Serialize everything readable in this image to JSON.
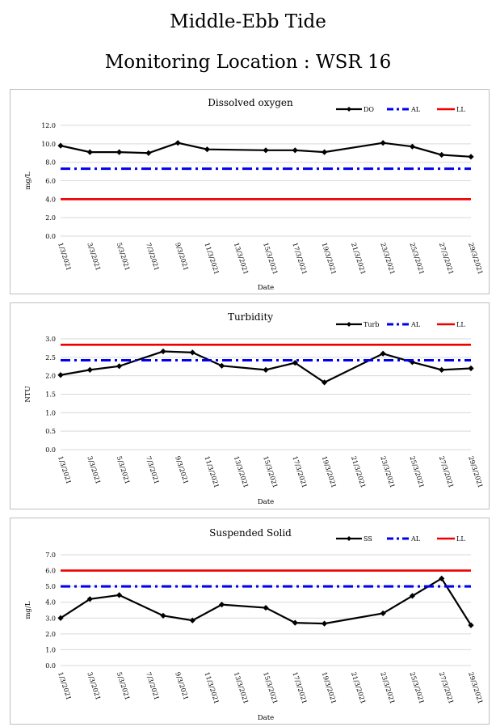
{
  "page": {
    "title_line1": "Middle-Ebb Tide",
    "title_line2": "Monitoring Location : WSR 16"
  },
  "colors": {
    "series": "#000000",
    "al": "#0000ee",
    "ll": "#ee0000",
    "grid": "#d9d9d9"
  },
  "chart_data": [
    {
      "type": "line",
      "title": "Dissolved oxygen",
      "xlabel": "Date",
      "ylabel": "mg/L",
      "ylim": [
        0,
        12
      ],
      "yticks": [
        "0.0",
        "2.0",
        "4.0",
        "6.0",
        "8.0",
        "10.0",
        "12.0"
      ],
      "categories": [
        "1/3/2021",
        "3/3/2021",
        "5/3/2021",
        "7/3/2021",
        "9/3/2021",
        "11/3/2021",
        "13/3/2021",
        "15/3/2021",
        "17/3/2021",
        "19/3/2021",
        "21/3/2021",
        "23/3/2021",
        "25/3/2021",
        "27/3/2021",
        "29/3/2021"
      ],
      "grid": true,
      "legend_position": "top-right",
      "series": [
        {
          "name": "DO",
          "style": "solid-marker",
          "points": [
            [
              "1/3/2021",
              9.8
            ],
            [
              "3/3/2021",
              9.1
            ],
            [
              "5/3/2021",
              9.1
            ],
            [
              "7/3/2021",
              9.0
            ],
            [
              "9/3/2021",
              10.1
            ],
            [
              "11/3/2021",
              9.4
            ],
            [
              "15/3/2021",
              9.3
            ],
            [
              "17/3/2021",
              9.3
            ],
            [
              "19/3/2021",
              9.1
            ],
            [
              "23/3/2021",
              10.1
            ],
            [
              "25/3/2021",
              9.7
            ],
            [
              "27/3/2021",
              8.8
            ],
            [
              "29/3/2021",
              8.6
            ]
          ]
        },
        {
          "name": "AL",
          "style": "dash-dot",
          "points": [
            [
              "1/3/2021",
              7.3
            ],
            [
              "29/3/2021",
              7.3
            ]
          ]
        },
        {
          "name": "LL",
          "style": "solid",
          "points": [
            [
              "1/3/2021",
              4.0
            ],
            [
              "29/3/2021",
              4.0
            ]
          ]
        }
      ]
    },
    {
      "type": "line",
      "title": "Turbidity",
      "xlabel": "Date",
      "ylabel": "NTU",
      "ylim": [
        0,
        3
      ],
      "yticks": [
        "0.0",
        "0.5",
        "1.0",
        "1.5",
        "2.0",
        "2.5",
        "3.0"
      ],
      "categories": [
        "1/3/2021",
        "3/3/2021",
        "5/3/2021",
        "7/3/2021",
        "9/3/2021",
        "11/3/2021",
        "13/3/2021",
        "15/3/2021",
        "17/3/2021",
        "19/3/2021",
        "21/3/2021",
        "23/3/2021",
        "25/3/2021",
        "27/3/2021",
        "29/3/2021"
      ],
      "grid": true,
      "legend_position": "top-right",
      "series": [
        {
          "name": "Turb",
          "style": "solid-marker",
          "points": [
            [
              "1/3/2021",
              2.02
            ],
            [
              "3/3/2021",
              2.16
            ],
            [
              "5/3/2021",
              2.26
            ],
            [
              "8/3/2021",
              2.66
            ],
            [
              "10/3/2021",
              2.63
            ],
            [
              "12/3/2021",
              2.27
            ],
            [
              "15/3/2021",
              2.16
            ],
            [
              "17/3/2021",
              2.35
            ],
            [
              "19/3/2021",
              1.82
            ],
            [
              "23/3/2021",
              2.6
            ],
            [
              "25/3/2021",
              2.37
            ],
            [
              "27/3/2021",
              2.16
            ],
            [
              "29/3/2021",
              2.2
            ]
          ]
        },
        {
          "name": "AL",
          "style": "dash-dot",
          "points": [
            [
              "1/3/2021",
              2.42
            ],
            [
              "29/3/2021",
              2.42
            ]
          ]
        },
        {
          "name": "LL",
          "style": "solid",
          "points": [
            [
              "1/3/2021",
              2.84
            ],
            [
              "29/3/2021",
              2.84
            ]
          ]
        }
      ]
    },
    {
      "type": "line",
      "title": "Suspended Solid",
      "xlabel": "Date",
      "ylabel": "mg/L",
      "ylim": [
        0,
        7
      ],
      "yticks": [
        "0.0",
        "1.0",
        "2.0",
        "3.0",
        "4.0",
        "5.0",
        "6.0",
        "7.0"
      ],
      "categories": [
        "1/3/2021",
        "3/3/2021",
        "5/3/2021",
        "7/3/2021",
        "9/3/2021",
        "11/3/2021",
        "13/3/2021",
        "15/3/2021",
        "17/3/2021",
        "19/3/2021",
        "21/3/2021",
        "23/3/2021",
        "25/3/2021",
        "27/3/2021",
        "29/3/2021"
      ],
      "grid": true,
      "legend_position": "top-right",
      "series": [
        {
          "name": "SS",
          "style": "solid-marker",
          "points": [
            [
              "1/3/2021",
              3.0
            ],
            [
              "3/3/2021",
              4.2
            ],
            [
              "5/3/2021",
              4.45
            ],
            [
              "8/3/2021",
              3.15
            ],
            [
              "10/3/2021",
              2.85
            ],
            [
              "12/3/2021",
              3.85
            ],
            [
              "15/3/2021",
              3.65
            ],
            [
              "17/3/2021",
              2.7
            ],
            [
              "19/3/2021",
              2.65
            ],
            [
              "23/3/2021",
              3.3
            ],
            [
              "25/3/2021",
              4.4
            ],
            [
              "27/3/2021",
              5.5
            ],
            [
              "29/3/2021",
              2.55
            ]
          ]
        },
        {
          "name": "AL",
          "style": "dash-dot",
          "points": [
            [
              "1/3/2021",
              5.0
            ],
            [
              "29/3/2021",
              5.0
            ]
          ]
        },
        {
          "name": "LL",
          "style": "solid",
          "points": [
            [
              "1/3/2021",
              6.0
            ],
            [
              "29/3/2021",
              6.0
            ]
          ]
        }
      ]
    }
  ]
}
